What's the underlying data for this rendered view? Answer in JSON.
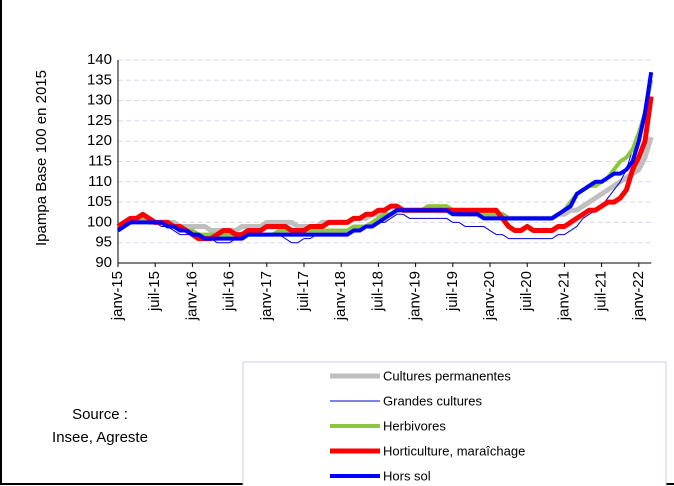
{
  "chart_data": {
    "type": "line",
    "ylabel": "Ipampa  Base 100 en 2015",
    "source": [
      "Source :",
      "Insee, Agreste"
    ],
    "categories": [
      "janv-15",
      null,
      null,
      null,
      null,
      null,
      "juil-15",
      null,
      null,
      null,
      null,
      null,
      "janv-16",
      null,
      null,
      null,
      null,
      null,
      "juil-16",
      null,
      null,
      null,
      null,
      null,
      "janv-17",
      null,
      null,
      null,
      null,
      null,
      "juil-17",
      null,
      null,
      null,
      null,
      null,
      "janv-18",
      null,
      null,
      null,
      null,
      null,
      "juil-18",
      null,
      null,
      null,
      null,
      null,
      "janv-19",
      null,
      null,
      null,
      null,
      null,
      "juil-19",
      null,
      null,
      null,
      null,
      null,
      "janv-20",
      null,
      null,
      null,
      null,
      null,
      "juil-20",
      null,
      null,
      null,
      null,
      null,
      "janv-21",
      null,
      null,
      null,
      null,
      null,
      "juil-21",
      null,
      null,
      null,
      null,
      null,
      "janv-22",
      null,
      null
    ],
    "ylim": [
      90,
      140
    ],
    "yticks": [
      90,
      95,
      100,
      105,
      110,
      115,
      120,
      125,
      130,
      135,
      140
    ],
    "grid": true,
    "series": [
      {
        "name": "Cultures permanentes",
        "color": "#bfbfbf",
        "width": 5,
        "values": [
          99,
          100,
          100,
          101,
          101,
          100,
          100,
          100,
          100,
          100,
          99,
          99,
          99,
          99,
          99,
          98,
          98,
          98,
          98,
          98,
          99,
          99,
          99,
          99,
          100,
          100,
          100,
          100,
          100,
          99,
          99,
          99,
          99,
          100,
          100,
          100,
          100,
          100,
          101,
          101,
          101,
          102,
          102,
          102,
          102,
          103,
          103,
          103,
          103,
          103,
          103,
          103,
          103,
          103,
          103,
          102,
          102,
          102,
          102,
          102,
          102,
          102,
          102,
          101,
          101,
          101,
          101,
          101,
          101,
          101,
          101,
          102,
          102,
          103,
          103,
          104,
          105,
          106,
          107,
          108,
          109,
          110,
          111,
          112,
          113,
          116,
          121
        ]
      },
      {
        "name": "Grandes cultures",
        "color": "#0000cc",
        "width": 1,
        "values": [
          99,
          100,
          100,
          101,
          100,
          100,
          100,
          99,
          99,
          98,
          97,
          97,
          97,
          96,
          96,
          96,
          95,
          95,
          95,
          96,
          96,
          97,
          97,
          97,
          97,
          97,
          97,
          96,
          95,
          95,
          96,
          96,
          97,
          97,
          97,
          97,
          97,
          97,
          98,
          98,
          99,
          99,
          100,
          100,
          101,
          102,
          102,
          101,
          101,
          101,
          101,
          101,
          101,
          101,
          100,
          100,
          99,
          99,
          99,
          99,
          98,
          97,
          97,
          96,
          96,
          96,
          96,
          96,
          96,
          96,
          96,
          97,
          97,
          98,
          99,
          101,
          102,
          103,
          104,
          106,
          108,
          110,
          113,
          118,
          121,
          125,
          130
        ]
      },
      {
        "name": "Herbivores",
        "color": "#8cc63f",
        "width": 4,
        "values": [
          99,
          100,
          101,
          101,
          101,
          100,
          100,
          100,
          100,
          99,
          99,
          98,
          98,
          97,
          97,
          97,
          97,
          97,
          97,
          97,
          97,
          97,
          97,
          97,
          97,
          97,
          98,
          98,
          98,
          98,
          98,
          98,
          98,
          98,
          98,
          98,
          98,
          98,
          99,
          99,
          99,
          100,
          101,
          102,
          102,
          103,
          103,
          103,
          103,
          103,
          104,
          104,
          104,
          104,
          103,
          103,
          103,
          102,
          102,
          102,
          102,
          102,
          102,
          101,
          101,
          101,
          101,
          101,
          101,
          101,
          101,
          102,
          103,
          105,
          107,
          108,
          109,
          109,
          110,
          111,
          113,
          115,
          116,
          118,
          122,
          127,
          135
        ]
      },
      {
        "name": "Horticulture, maraîchage",
        "color": "#ff0000",
        "width": 5,
        "values": [
          99,
          100,
          101,
          101,
          102,
          101,
          100,
          100,
          100,
          99,
          99,
          98,
          97,
          96,
          96,
          96,
          97,
          98,
          98,
          97,
          97,
          98,
          98,
          98,
          99,
          99,
          99,
          99,
          98,
          98,
          98,
          99,
          99,
          99,
          100,
          100,
          100,
          100,
          101,
          101,
          102,
          102,
          103,
          103,
          104,
          104,
          103,
          103,
          103,
          103,
          103,
          103,
          103,
          103,
          103,
          103,
          103,
          103,
          103,
          103,
          103,
          103,
          101,
          99,
          98,
          98,
          99,
          98,
          98,
          98,
          98,
          99,
          99,
          100,
          101,
          102,
          103,
          103,
          104,
          105,
          105,
          106,
          108,
          113,
          116,
          120,
          131
        ]
      },
      {
        "name": "Hors sol",
        "color": "#0000ff",
        "width": 4,
        "values": [
          98,
          99,
          100,
          100,
          100,
          100,
          100,
          100,
          99,
          99,
          98,
          98,
          97,
          97,
          96,
          96,
          96,
          96,
          96,
          96,
          96,
          97,
          97,
          97,
          97,
          97,
          97,
          97,
          97,
          97,
          97,
          97,
          97,
          97,
          97,
          97,
          97,
          97,
          98,
          98,
          99,
          99,
          100,
          101,
          102,
          103,
          103,
          103,
          103,
          103,
          103,
          103,
          103,
          103,
          102,
          102,
          102,
          102,
          102,
          101,
          101,
          101,
          101,
          101,
          101,
          101,
          101,
          101,
          101,
          101,
          101,
          102,
          103,
          104,
          107,
          108,
          109,
          110,
          110,
          111,
          112,
          112,
          113,
          115,
          120,
          127,
          137
        ]
      }
    ]
  }
}
